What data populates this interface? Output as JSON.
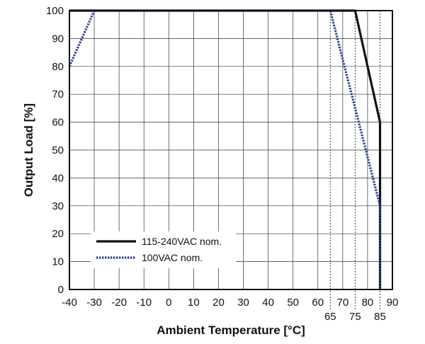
{
  "chart_data": {
    "type": "line",
    "title": "",
    "xlabel": "Ambient Temperature [°C]",
    "ylabel": "Output Load [%]",
    "xlim": [
      -40,
      90
    ],
    "ylim": [
      0,
      100
    ],
    "x_ticks": [
      "-40",
      "-30",
      "-20",
      "-10",
      "0",
      "10",
      "20",
      "30",
      "40",
      "50",
      "60",
      "70",
      "80",
      "90"
    ],
    "x_tick_values": [
      -40,
      -30,
      -20,
      -10,
      0,
      10,
      20,
      30,
      40,
      50,
      60,
      70,
      80,
      90
    ],
    "x_extra_ticks": [
      "65",
      "75",
      "85"
    ],
    "x_extra_tick_values": [
      65,
      75,
      85
    ],
    "y_ticks": [
      "0",
      "10",
      "20",
      "30",
      "40",
      "50",
      "60",
      "70",
      "80",
      "90",
      "100"
    ],
    "y_tick_values": [
      0,
      10,
      20,
      30,
      40,
      50,
      60,
      70,
      80,
      90,
      100
    ],
    "grid": true,
    "legend_position": "bottom-left",
    "series": [
      {
        "name": "115-240VAC nom.",
        "style": "solid",
        "color": "#111111",
        "points": [
          [
            -40,
            100
          ],
          [
            75,
            100
          ],
          [
            80,
            80
          ],
          [
            85,
            60
          ],
          [
            85,
            0
          ]
        ]
      },
      {
        "name": "100VAC nom.",
        "style": "dotted",
        "color": "#2b3f8e",
        "points": [
          [
            -40,
            80
          ],
          [
            -30,
            100
          ],
          [
            65,
            100
          ],
          [
            85,
            30
          ],
          [
            85,
            0
          ]
        ]
      }
    ]
  }
}
